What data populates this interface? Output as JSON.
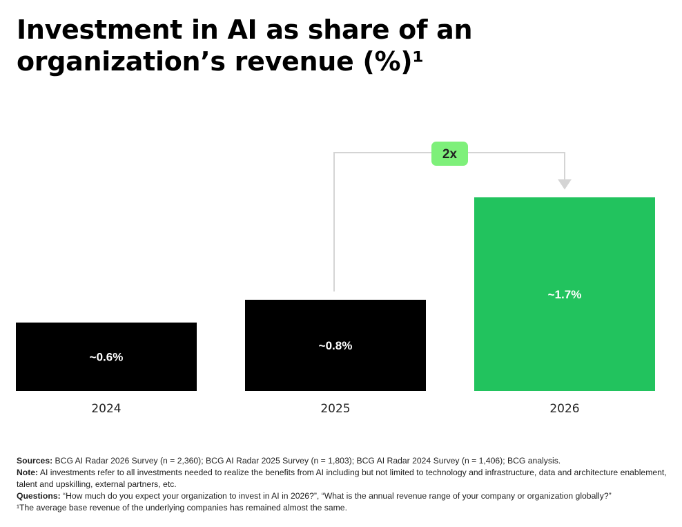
{
  "title_line1": "Investment in AI as share of an",
  "title_line2": "organization’s revenue (%)¹",
  "chart_data": {
    "type": "bar",
    "title": "Investment in AI as share of an organization’s revenue (%)¹",
    "categories": [
      "2024",
      "2025",
      "2026"
    ],
    "values": [
      0.6,
      0.8,
      1.7
    ],
    "data_labels": [
      "~0.6%",
      "~0.8%",
      "~1.7%"
    ],
    "colors": [
      "#000000",
      "#000000",
      "#22c35e"
    ],
    "annotation": {
      "label": "2x",
      "from": "2025",
      "to": "2026",
      "badge_color": "#7ef07a",
      "arrow_color": "#d4d4d4"
    },
    "ylim": [
      0,
      1.8
    ],
    "grid": false,
    "legend": "none"
  },
  "notes": {
    "sources_label": "Sources:",
    "sources": " BCG AI Radar 2026 Survey (n = 2,360); BCG AI Radar 2025 Survey (n = 1,803); BCG AI Radar 2024 Survey (n = 1,406); BCG analysis.",
    "note_label": "Note:",
    "note": " AI investments refer to all investments needed to realize the benefits from AI including but not limited to technology and infrastructure, data and architecture enablement, talent and upskilling, external partners, etc.",
    "questions_label": "Questions:",
    "questions": " “How much do you expect your organization to invest in AI in 2026?”, “What is the annual revenue range of your company or organization globally?”",
    "footnote": "¹The average base revenue of the underlying companies has remained almost the same."
  }
}
